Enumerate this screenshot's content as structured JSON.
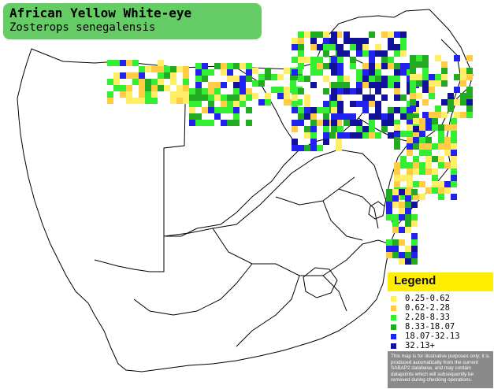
{
  "title": {
    "common_name": "African Yellow White-eye",
    "scientific_name": "Zosterops senegalensis"
  },
  "legend": {
    "heading": "Legend",
    "items": [
      {
        "label": "0.25-0.62",
        "color": "#ffee66"
      },
      {
        "label": "0.62-2.28",
        "color": "#ffcc44"
      },
      {
        "label": "2.28-8.33",
        "color": "#33ee33"
      },
      {
        "label": "8.33-18.07",
        "color": "#22aa22"
      },
      {
        "label": "18.07-32.13",
        "color": "#2222ee"
      },
      {
        "label": "32.13+",
        "color": "#111199"
      }
    ],
    "disclaimer": "This map is for illustrative purposes only; it is produced automatically from the current SABAP2 database, and may contain datapoints which will subsequently be removed during checking operations."
  },
  "colors": {
    "title_background": "#66cc66",
    "legend_header": "#ffee00",
    "disclaimer_background": "#8a8a8a",
    "land": "#ffffff",
    "borders": "#000000"
  }
}
